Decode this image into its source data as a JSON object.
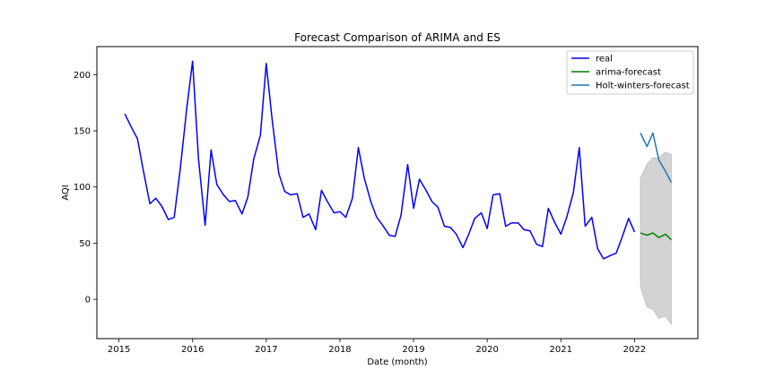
{
  "chart_data": {
    "type": "line",
    "title": "Forecast Comparison of ARIMA and ES",
    "xlabel": "Date (month)",
    "ylabel": "AQI",
    "xlim": [
      2014.7,
      2022.86
    ],
    "ylim": [
      -35,
      225
    ],
    "xticks": [
      2015,
      2016,
      2017,
      2018,
      2019,
      2020,
      2021,
      2022
    ],
    "yticks": [
      0,
      50,
      100,
      150,
      200
    ],
    "grid": false,
    "legend_position": "top-right",
    "series": [
      {
        "name": "real",
        "color": "#0000ff",
        "x": [
          2015.08,
          2015.17,
          2015.25,
          2015.33,
          2015.42,
          2015.5,
          2015.58,
          2015.67,
          2015.75,
          2015.83,
          2015.92,
          2016.0,
          2016.08,
          2016.17,
          2016.25,
          2016.33,
          2016.42,
          2016.5,
          2016.58,
          2016.67,
          2016.75,
          2016.83,
          2016.92,
          2017.0,
          2017.08,
          2017.17,
          2017.25,
          2017.33,
          2017.42,
          2017.5,
          2017.58,
          2017.67,
          2017.75,
          2017.83,
          2017.92,
          2018.0,
          2018.08,
          2018.17,
          2018.25,
          2018.33,
          2018.42,
          2018.5,
          2018.58,
          2018.67,
          2018.75,
          2018.83,
          2018.92,
          2019.0,
          2019.08,
          2019.17,
          2019.25,
          2019.33,
          2019.42,
          2019.5,
          2019.58,
          2019.67,
          2019.75,
          2019.83,
          2019.92,
          2020.0,
          2020.08,
          2020.17,
          2020.25,
          2020.33,
          2020.42,
          2020.5,
          2020.58,
          2020.67,
          2020.75,
          2020.83,
          2020.92,
          2021.0,
          2021.08,
          2021.17,
          2021.25,
          2021.33,
          2021.42,
          2021.5,
          2021.58,
          2021.67,
          2021.75,
          2021.83,
          2021.92,
          2022.0
        ],
        "values": [
          165,
          153,
          143,
          115,
          85,
          90,
          83,
          71,
          73,
          115,
          170,
          212,
          125,
          66,
          133,
          102,
          93,
          87,
          88,
          76,
          91,
          125,
          146,
          210,
          160,
          112,
          96,
          93,
          94,
          73,
          76,
          62,
          97,
          87,
          77,
          78,
          73,
          90,
          135,
          108,
          87,
          73,
          66,
          57,
          56,
          75,
          120,
          81,
          107,
          97,
          87,
          82,
          65,
          64,
          58,
          46,
          58,
          72,
          77,
          63,
          93,
          94,
          65,
          68,
          68,
          62,
          61,
          49,
          47,
          81,
          68,
          58,
          73,
          95,
          135,
          65,
          73,
          45,
          36,
          39,
          41,
          55,
          72,
          60
        ]
      },
      {
        "name": "arima-forecast",
        "color": "#008000",
        "x": [
          2022.08,
          2022.17,
          2022.25,
          2022.33,
          2022.42,
          2022.5
        ],
        "values": [
          59,
          57,
          59,
          55,
          58,
          53
        ]
      },
      {
        "name": "Holt-winters-forecast",
        "color": "#1f77b4",
        "x": [
          2022.08,
          2022.17,
          2022.25,
          2022.33,
          2022.42,
          2022.5
        ],
        "values": [
          148,
          136,
          148,
          124,
          114,
          104
        ]
      }
    ],
    "confidence_band": {
      "color": "#d3d3d3",
      "x": [
        2022.08,
        2022.17,
        2022.25,
        2022.33,
        2022.42,
        2022.5
      ],
      "lower": [
        11,
        -7,
        -9,
        -17,
        -15,
        -22
      ],
      "upper": [
        108,
        120,
        126,
        126,
        131,
        129
      ]
    }
  }
}
